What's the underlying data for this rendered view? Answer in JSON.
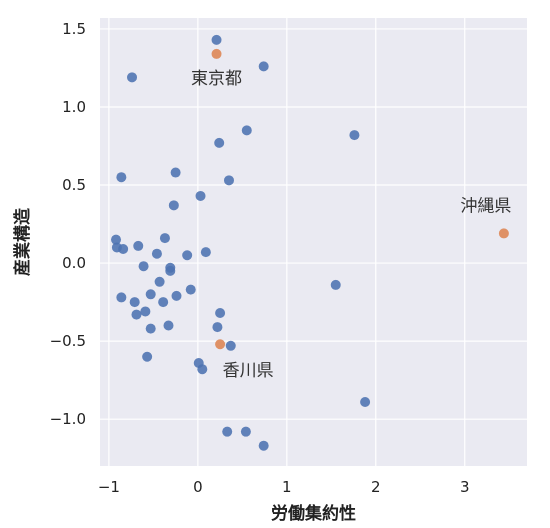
{
  "chart_data": {
    "type": "scatter",
    "xlabel": "労働集約性",
    "ylabel": "産業構造",
    "xlim": [
      -1.1,
      3.7
    ],
    "ylim": [
      -1.3,
      1.57
    ],
    "xticks": [
      -1,
      0,
      1,
      2,
      3
    ],
    "yticks": [
      -1.0,
      -0.5,
      0.0,
      0.5,
      1.0,
      1.5
    ],
    "xtick_labels": [
      "−1",
      "0",
      "1",
      "2",
      "3"
    ],
    "ytick_labels": [
      "−1.0",
      "−0.5",
      "0.0",
      "0.5",
      "1.0",
      "1.5"
    ],
    "grid": true,
    "colors": {
      "background": "#eaeaf2",
      "points": "#4c72b0",
      "highlight": "#dd8452"
    },
    "series": [
      {
        "points": [
          [
            0.21,
            1.43
          ],
          [
            -0.74,
            1.19
          ],
          [
            0.74,
            1.26
          ],
          [
            0.55,
            0.85
          ],
          [
            1.76,
            0.82
          ],
          [
            0.24,
            0.77
          ],
          [
            -0.86,
            0.55
          ],
          [
            -0.25,
            0.58
          ],
          [
            0.35,
            0.53
          ],
          [
            0.03,
            0.43
          ],
          [
            -0.27,
            0.37
          ],
          [
            -0.92,
            0.15
          ],
          [
            -0.91,
            0.1
          ],
          [
            -0.84,
            0.09
          ],
          [
            -0.67,
            0.11
          ],
          [
            -0.37,
            0.16
          ],
          [
            -0.46,
            0.06
          ],
          [
            -0.12,
            0.05
          ],
          [
            0.09,
            0.07
          ],
          [
            -0.61,
            -0.02
          ],
          [
            -0.31,
            -0.03
          ],
          [
            -0.31,
            -0.05
          ],
          [
            -0.43,
            -0.12
          ],
          [
            -0.71,
            -0.25
          ],
          [
            -0.53,
            -0.2
          ],
          [
            -0.39,
            -0.25
          ],
          [
            -0.24,
            -0.21
          ],
          [
            -0.86,
            -0.22
          ],
          [
            -0.08,
            -0.17
          ],
          [
            1.55,
            -0.14
          ],
          [
            -0.59,
            -0.31
          ],
          [
            -0.69,
            -0.33
          ],
          [
            0.25,
            -0.32
          ],
          [
            -0.53,
            -0.42
          ],
          [
            -0.33,
            -0.4
          ],
          [
            0.22,
            -0.41
          ],
          [
            0.37,
            -0.53
          ],
          [
            -0.57,
            -0.6
          ],
          [
            0.01,
            -0.64
          ],
          [
            0.05,
            -0.68
          ],
          [
            1.88,
            -0.89
          ],
          [
            0.33,
            -1.08
          ],
          [
            0.54,
            -1.08
          ],
          [
            0.74,
            -1.17
          ]
        ]
      },
      {
        "points": [
          [
            0.21,
            1.34
          ],
          [
            3.44,
            0.19
          ],
          [
            0.25,
            -0.52
          ]
        ]
      }
    ],
    "annotations": [
      {
        "text": "東京都",
        "x": 0.21,
        "y": 1.34
      },
      {
        "text": "沖縄県",
        "x": 3.44,
        "y": 0.19
      },
      {
        "text": "香川県",
        "x": 0.25,
        "y": -0.52
      }
    ]
  }
}
